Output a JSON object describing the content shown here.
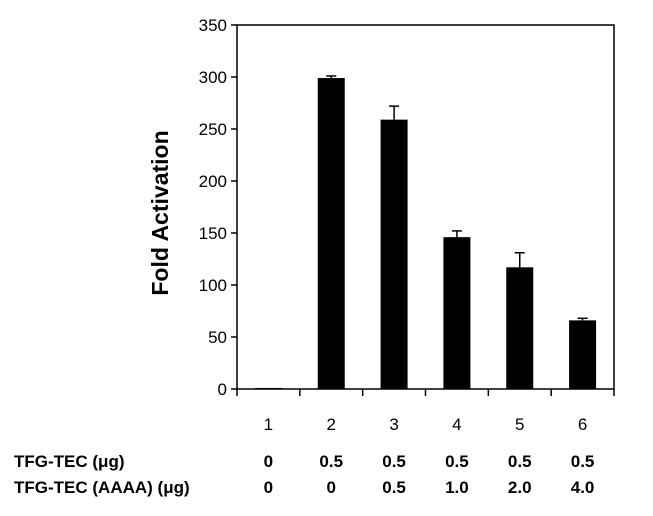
{
  "chart_data": {
    "type": "bar",
    "title": "",
    "xlabel": "",
    "ylabel": "Fold Activation",
    "categories": [
      "1",
      "2",
      "3",
      "4",
      "5",
      "6"
    ],
    "values": [
      1,
      299,
      259,
      146,
      117,
      66
    ],
    "errors": [
      0,
      2,
      13,
      6,
      14,
      2
    ],
    "ylim": [
      0,
      350
    ],
    "yticks": [
      0,
      50,
      100,
      150,
      200,
      250,
      300,
      350
    ],
    "ytick_labels": [
      "0",
      "50",
      "100",
      "150",
      "200",
      "250",
      "300",
      "350"
    ],
    "grid": false,
    "bar_color": "#000000"
  },
  "conditions": {
    "row1_label_prefix": "TFG-TEC (",
    "row1_label_mu": "μg",
    "row1_label_suffix": ")",
    "row1_values": [
      "0",
      "0.5",
      "0.5",
      "0.5",
      "0.5",
      "0.5"
    ],
    "row2_label_prefix": "TFG-TEC (AAAA)  (",
    "row2_label_mu": "μg",
    "row2_label_suffix": ")",
    "row2_values": [
      "0",
      "0",
      "0.5",
      "1.0",
      "2.0",
      "4.0"
    ]
  }
}
